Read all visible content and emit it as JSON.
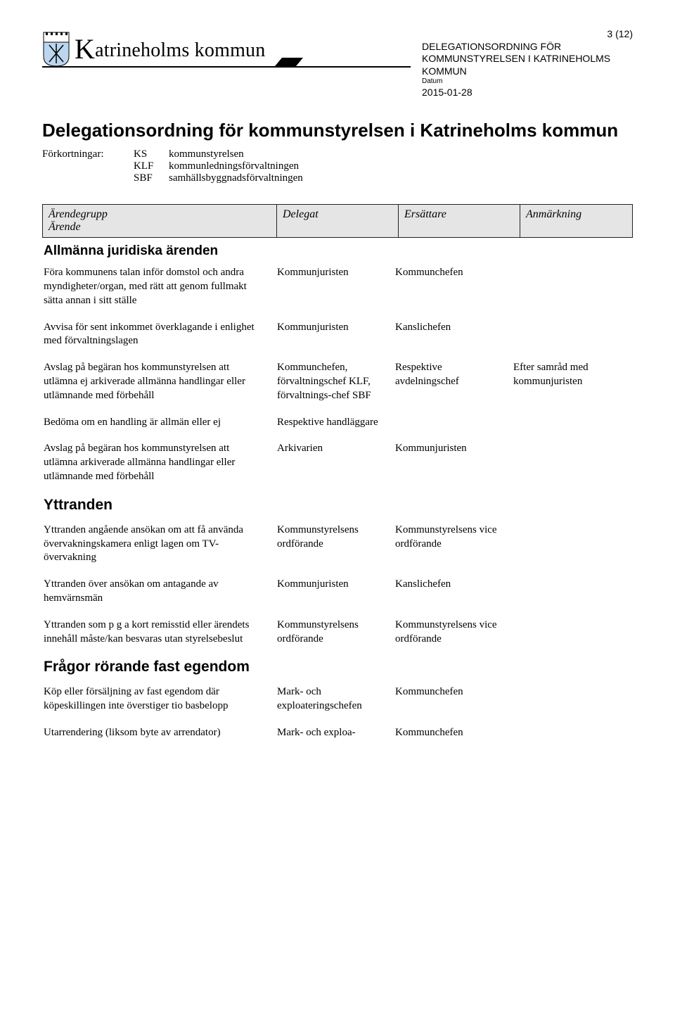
{
  "page_number": "3 (12)",
  "logo_text": "Katrineholms kommun",
  "header_block": {
    "line1": "DELEGATIONSORDNING FÖR",
    "line2": "KOMMUNSTYRELSEN I KATRINEHOLMS",
    "line3": "KOMMUN",
    "datum_label": "Datum",
    "date": "2015-01-28"
  },
  "main_title": "Delegationsordning för kommunstyrelsen i Katrineholms kommun",
  "abbrev": {
    "label": "Förkortningar:",
    "codes": [
      "KS",
      "KLF",
      "SBF"
    ],
    "defs": [
      "kommunstyrelsen",
      "kommunledningsförvaltningen",
      "samhällsbyggnadsförvaltningen"
    ]
  },
  "table_header": {
    "c1a": "Ärendegrupp",
    "c1b": "Ärende",
    "c2": "Delegat",
    "c3": "Ersättare",
    "c4": "Anmärkning"
  },
  "section1": "Allmänna juridiska ärenden",
  "rows1": [
    {
      "c1": "Föra kommunens talan inför domstol och andra myndigheter/organ, med rätt att genom fullmakt sätta annan i sitt ställe",
      "c2": "Kommunjuristen",
      "c3": "Kommunchefen",
      "c4": ""
    },
    {
      "c1": "Avvisa för sent inkommet överklagande i enlighet med förvaltningslagen",
      "c2": "Kommunjuristen",
      "c3": "Kanslichefen",
      "c4": ""
    },
    {
      "c1": "Avslag på begäran hos kommunstyrelsen att utlämna ej arkiverade allmänna handlingar eller utlämnande med förbehåll",
      "c2": "Kommunchefen, förvaltningschef KLF, förvaltnings-chef SBF",
      "c3": "Respektive avdelningschef",
      "c4": "Efter samråd med kommunjuristen"
    },
    {
      "c1": "Bedöma om en handling är allmän eller ej",
      "c2": "Respektive handläggare",
      "c3": "",
      "c4": ""
    },
    {
      "c1": "Avslag på begäran hos kommunstyrelsen att utlämna arkiverade allmänna handlingar eller utlämnande med förbehåll",
      "c2": "Arkivarien",
      "c3": "Kommunjuristen",
      "c4": ""
    }
  ],
  "section2": "Yttranden",
  "rows2": [
    {
      "c1": "Yttranden angående ansökan om att få använda övervakningskamera enligt lagen om TV-övervakning",
      "c2": "Kommunstyrelsens ordförande",
      "c3": "Kommunstyrelsens vice ordförande",
      "c4": ""
    },
    {
      "c1": "Yttranden över ansökan om antagande av hemvärnsmän",
      "c2": "Kommunjuristen",
      "c3": "Kanslichefen",
      "c4": ""
    },
    {
      "c1": "Yttranden som p g a kort remisstid eller ärendets innehåll måste/kan besvaras utan styrelsebeslut",
      "c2": "Kommunstyrelsens ordförande",
      "c3": "Kommunstyrelsens vice ordförande",
      "c4": ""
    }
  ],
  "section3": "Frågor rörande fast egendom",
  "rows3": [
    {
      "c1": "Köp eller försäljning av fast egendom där köpeskillingen inte överstiger tio basbelopp",
      "c2": "Mark- och exploateringschefen",
      "c3": "Kommunchefen",
      "c4": ""
    },
    {
      "c1": "Utarrendering (liksom byte av arrendator)",
      "c2": "Mark- och exploa-",
      "c3": "Kommunchefen",
      "c4": ""
    }
  ]
}
